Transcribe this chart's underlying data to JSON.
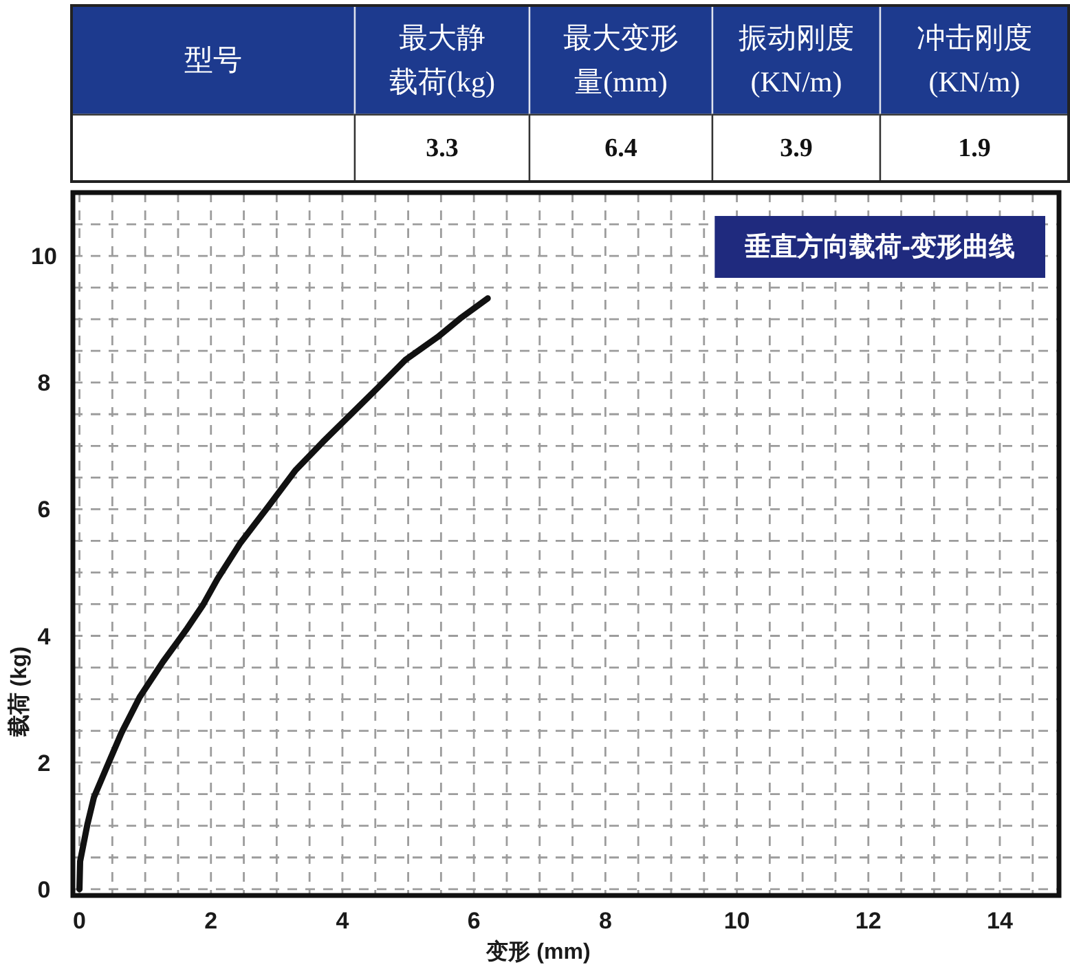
{
  "chart_data": [
    {
      "type": "other",
      "categories": [
        "型号",
        "最大静载荷(kg)",
        "最大变形量(mm)",
        "振动刚度(KN/m)",
        "冲击刚度(KN/m)"
      ],
      "values": [
        null,
        3.3,
        6.4,
        3.9,
        1.9
      ],
      "data_labels": true
    },
    {
      "type": "line",
      "title": "垂直方向载荷-变形曲线",
      "xlabel": "变形 (mm)",
      "ylabel": "载荷 (kg)",
      "x": [
        0,
        0.01,
        0.12,
        0.22,
        0.4,
        0.64,
        0.92,
        1.27,
        1.62,
        1.88,
        2.1,
        2.45,
        2.87,
        3.29,
        3.7,
        4.12,
        4.54,
        4.96,
        5.45,
        5.79,
        6.21
      ],
      "series": [
        {
          "color": "#111111",
          "values": [
            0,
            0.44,
            1.02,
            1.45,
            1.89,
            2.47,
            3.04,
            3.59,
            4.09,
            4.49,
            4.9,
            5.47,
            6.04,
            6.62,
            7.06,
            7.49,
            7.92,
            8.36,
            8.72,
            9.01,
            9.33
          ]
        }
      ],
      "xlim": [
        -0.1,
        14.9
      ],
      "ylim": [
        -0.1,
        11
      ],
      "xticks": [
        0,
        2,
        4,
        6,
        8,
        10,
        12,
        14
      ],
      "yticks": [
        0,
        2,
        4,
        6,
        8,
        10
      ],
      "grid": true
    }
  ]
}
